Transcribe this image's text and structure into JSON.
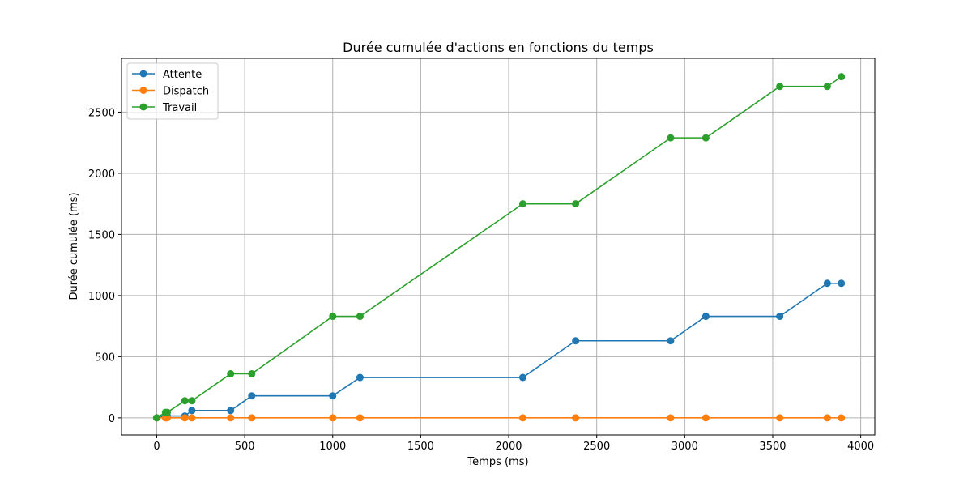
{
  "chart_data": {
    "type": "line",
    "title": "Durée cumulée d'actions en fonctions du temps",
    "xlabel": "Temps (ms)",
    "ylabel": "Durée cumulée (ms)",
    "xlim": [
      -200,
      4080
    ],
    "ylim": [
      -140,
      2940
    ],
    "xticks": [
      0,
      500,
      1000,
      1500,
      2000,
      2500,
      3000,
      3500,
      4000
    ],
    "yticks": [
      0,
      500,
      1000,
      1500,
      2000,
      2500
    ],
    "grid": true,
    "legend_position": "top-left",
    "series": [
      {
        "name": "Attente",
        "color": "#1f77b4",
        "x": [
          0,
          50,
          60,
          160,
          200,
          420,
          540,
          1000,
          1155,
          2080,
          2380,
          2920,
          3120,
          3540,
          3810,
          3890
        ],
        "y": [
          0,
          15,
          15,
          15,
          60,
          60,
          180,
          180,
          330,
          330,
          630,
          630,
          830,
          830,
          1100,
          1100
        ]
      },
      {
        "name": "Dispatch",
        "color": "#ff7f0e",
        "x": [
          0,
          50,
          60,
          160,
          200,
          420,
          540,
          1000,
          1155,
          2080,
          2380,
          2920,
          3120,
          3540,
          3810,
          3890
        ],
        "y": [
          0,
          0,
          0,
          0,
          0,
          0,
          0,
          0,
          0,
          0,
          0,
          0,
          0,
          0,
          0,
          0
        ]
      },
      {
        "name": "Travail",
        "color": "#2ca02c",
        "x": [
          0,
          50,
          60,
          160,
          200,
          420,
          540,
          1000,
          1155,
          2080,
          2380,
          2920,
          3120,
          3540,
          3810,
          3890
        ],
        "y": [
          0,
          45,
          45,
          140,
          140,
          360,
          360,
          830,
          830,
          1750,
          1750,
          2290,
          2290,
          2710,
          2710,
          2790
        ]
      }
    ]
  }
}
